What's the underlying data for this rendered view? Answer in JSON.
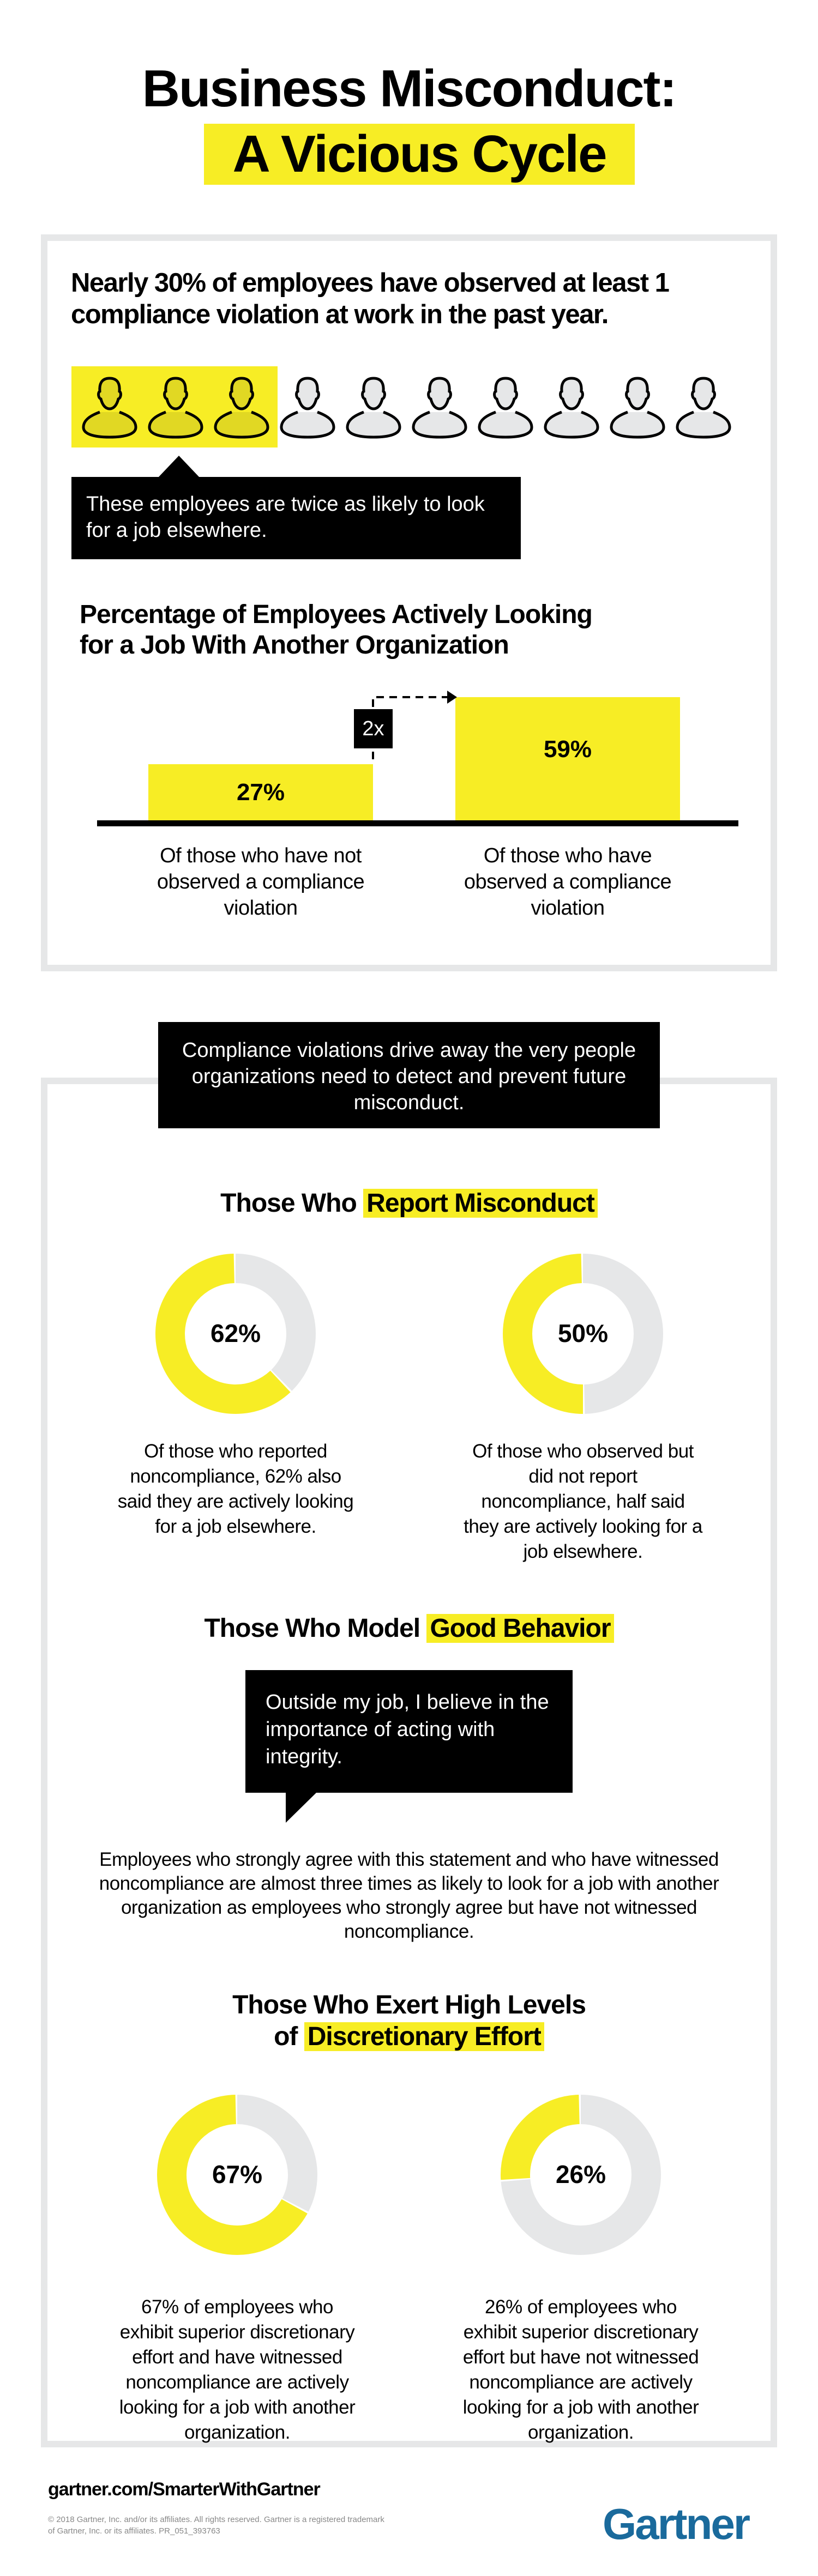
{
  "title": {
    "line1": "Business Misconduct:",
    "line2": "A Vicious Cycle"
  },
  "section1": {
    "headline": "Nearly 30% of employees have observed at least 1 compliance violation at work in the past year.",
    "people": {
      "total": 10,
      "highlighted": 3
    },
    "callout": "These employees are twice as likely to look for a job elsewhere.",
    "chart_heading_line1": "Percentage of Employees Actively Looking",
    "chart_heading_line2": "for a Job With Another Organization",
    "multiplier": "2x"
  },
  "transition_banner": "Compliance violations drive away the very people organizations need to detect and prevent future misconduct.",
  "report": {
    "heading_plain": "Those Who",
    "heading_highlight": "Report Misconduct"
  },
  "good_behavior": {
    "heading_plain": "Those Who Model",
    "heading_highlight": "Good Behavior",
    "quote": "Outside my job, I believe in the importance of acting with integrity.",
    "paragraph": "Employees who strongly agree with this statement and who have witnessed noncompliance are almost three times as likely to look for a job with another organization as employees who strongly agree but have not witnessed noncompliance."
  },
  "effort": {
    "heading_line1": "Those Who Exert High Levels",
    "heading_plain": "of",
    "heading_highlight": "Discretionary Effort"
  },
  "chart_data": [
    {
      "type": "bar",
      "title": "Percentage of Employees Actively Looking for a Job With Another Organization",
      "categories": [
        "Of those who have not observed a compliance violation",
        "Of those who have observed a compliance violation"
      ],
      "values": [
        27,
        59
      ],
      "labels": [
        "27%",
        "59%"
      ],
      "ylim": [
        0,
        59
      ]
    },
    {
      "type": "pie",
      "value": 62,
      "label": "62%",
      "caption": "Of those who reported noncompliance, 62% also said they are actively looking for a job elsewhere."
    },
    {
      "type": "pie",
      "value": 50,
      "label": "50%",
      "caption": "Of those who observed but did not report noncompliance, half said they are actively looking for a job elsewhere."
    },
    {
      "type": "pie",
      "value": 67,
      "label": "67%",
      "caption": "67% of employees who exhibit superior discretionary effort and have witnessed noncompliance are actively looking for a job with another organization."
    },
    {
      "type": "pie",
      "value": 26,
      "label": "26%",
      "caption": "26% of employees who exhibit superior discretionary effort but have not witnessed noncompliance are actively looking for a job with another organization."
    }
  ],
  "footer": {
    "url": "gartner.com/SmarterWithGartner",
    "copyright_line1": "© 2018 Gartner, Inc. and/or its affiliates. All rights reserved. Gartner is a registered trademark",
    "copyright_line2": "of Gartner, Inc. or its affiliates. PR_051_393763",
    "logo": "Gartner"
  },
  "colors": {
    "yellow": "#f7ed25",
    "gray": "#e6e7e8",
    "black": "#000000",
    "brand_blue": "#1a6a9c"
  }
}
